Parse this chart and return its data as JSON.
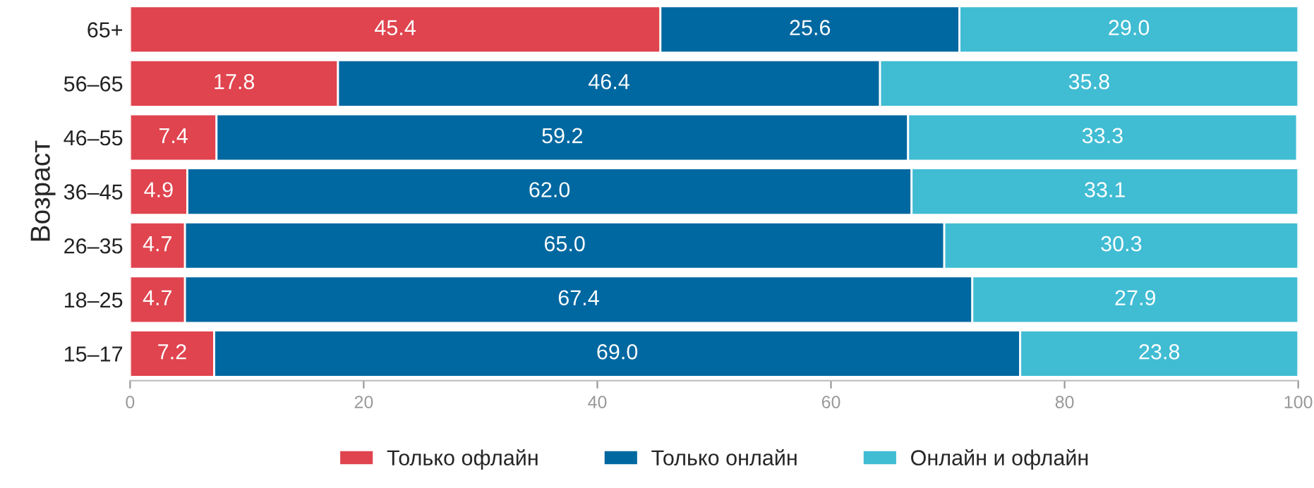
{
  "chart_data": {
    "type": "bar",
    "orientation": "horizontal",
    "stacked": true,
    "ylabel": "Возраст",
    "categories": [
      "65+",
      "56–65",
      "46–55",
      "36–45",
      "26–35",
      "18–25",
      "15–17"
    ],
    "series": [
      {
        "name": "Только офлайн",
        "color": "#e0444e",
        "values": [
          45.4,
          17.8,
          7.4,
          4.9,
          4.7,
          4.7,
          7.2
        ],
        "value_labels": [
          "45.4",
          "17.8",
          "7.4",
          "4.9",
          "4.7",
          "4.7",
          "7.2"
        ]
      },
      {
        "name": "Только онлайн",
        "color": "#0068a1",
        "values": [
          25.6,
          46.4,
          59.2,
          62.0,
          65.0,
          67.4,
          69.0
        ],
        "value_labels": [
          "25.6",
          "46.4",
          "59.2",
          "62.0",
          "65.0",
          "67.4",
          "69.0"
        ]
      },
      {
        "name": "Онлайн и офлайн",
        "color": "#40bcd3",
        "values": [
          29.0,
          35.8,
          33.3,
          33.1,
          30.3,
          27.9,
          23.8
        ],
        "value_labels": [
          "29.0",
          "35.8",
          "33.3",
          "33.1",
          "30.3",
          "27.9",
          "23.8"
        ]
      }
    ],
    "xlim": [
      0,
      100
    ],
    "xticks": [
      0,
      20,
      40,
      60,
      80,
      100
    ],
    "legend": "bottom",
    "grid": false
  }
}
